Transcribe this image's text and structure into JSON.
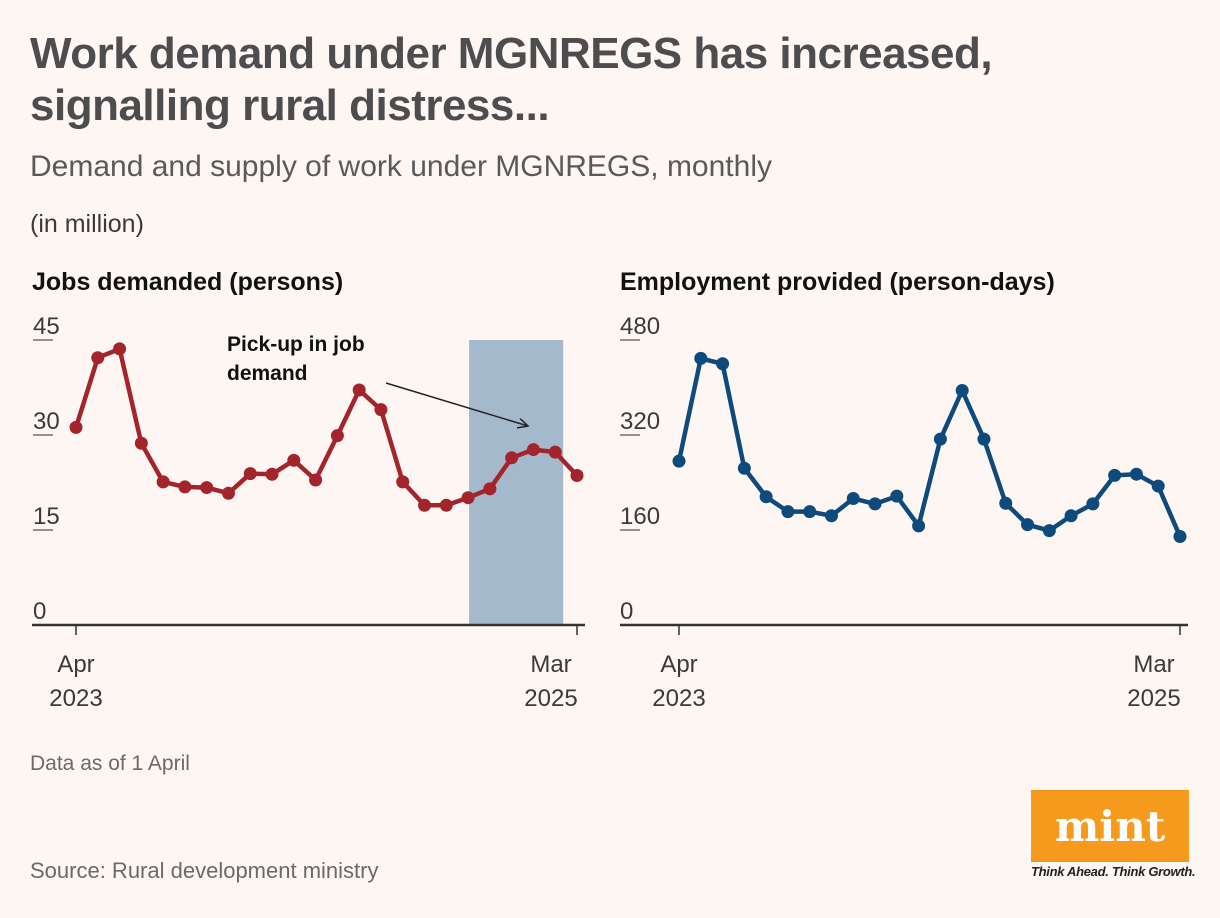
{
  "title": "Work demand under MGNREGS has increased, signalling rural distress...",
  "subtitle": "Demand and supply of work under MGNREGS, monthly",
  "unit_note": "(in million)",
  "data_note": "Data as of 1 April",
  "source": "Source: Rural development ministry",
  "logo": {
    "text": "mint",
    "tagline": "Think Ahead. Think Growth.",
    "color": "#f59a1c"
  },
  "chart_data": [
    {
      "type": "line",
      "title": "Jobs demanded (persons)",
      "color": "#a3242a",
      "highlight_color": "#a4b9cc",
      "x_start_label": [
        "Apr",
        "2023"
      ],
      "x_end_label": [
        "Mar",
        "2025"
      ],
      "ylim": [
        0,
        45
      ],
      "yticks": [
        "0",
        "15",
        "30",
        "45"
      ],
      "x": [
        "Apr 2023",
        "May 2023",
        "Jun 2023",
        "Jul 2023",
        "Aug 2023",
        "Sep 2023",
        "Oct 2023",
        "Nov 2023",
        "Dec 2023",
        "Jan 2024",
        "Feb 2024",
        "Mar 2024",
        "Apr 2024",
        "May 2024",
        "Jun 2024",
        "Jul 2024",
        "Aug 2024",
        "Sep 2024",
        "Oct 2024",
        "Nov 2024",
        "Dec 2024",
        "Jan 2025",
        "Feb 2025",
        "Mar 2025"
      ],
      "values": [
        31.2,
        42.2,
        43.6,
        28.7,
        22.6,
        21.8,
        21.7,
        20.8,
        23.9,
        23.8,
        26.0,
        22.9,
        29.9,
        37.1,
        34.0,
        22.6,
        18.9,
        18.9,
        20.1,
        21.5,
        26.4,
        27.7,
        27.3,
        23.6
      ],
      "highlight": {
        "from_index": 18,
        "to_index": 22
      },
      "annotation": {
        "lines": [
          "Pick-up in job",
          "demand"
        ]
      }
    },
    {
      "type": "line",
      "title": "Employment provided (person-days)",
      "color": "#0f4a7c",
      "x_start_label": [
        "Apr",
        "2023"
      ],
      "x_end_label": [
        "Mar",
        "2025"
      ],
      "ylim": [
        0,
        480
      ],
      "yticks": [
        "0",
        "160",
        "320",
        "480"
      ],
      "x": [
        "Apr 2023",
        "May 2023",
        "Jun 2023",
        "Jul 2023",
        "Aug 2023",
        "Sep 2023",
        "Oct 2023",
        "Nov 2023",
        "Dec 2023",
        "Jan 2024",
        "Feb 2024",
        "Mar 2024",
        "Apr 2024",
        "May 2024",
        "Jun 2024",
        "Jul 2024",
        "Aug 2024",
        "Sep 2024",
        "Oct 2024",
        "Nov 2024",
        "Dec 2024",
        "Jan 2025",
        "Feb 2025",
        "Mar 2025"
      ],
      "values": [
        276,
        449,
        440,
        264,
        216,
        191,
        191,
        184,
        213,
        204,
        217,
        167,
        313,
        395,
        313,
        205,
        169,
        159,
        184,
        204,
        252,
        254,
        234,
        149
      ]
    }
  ]
}
